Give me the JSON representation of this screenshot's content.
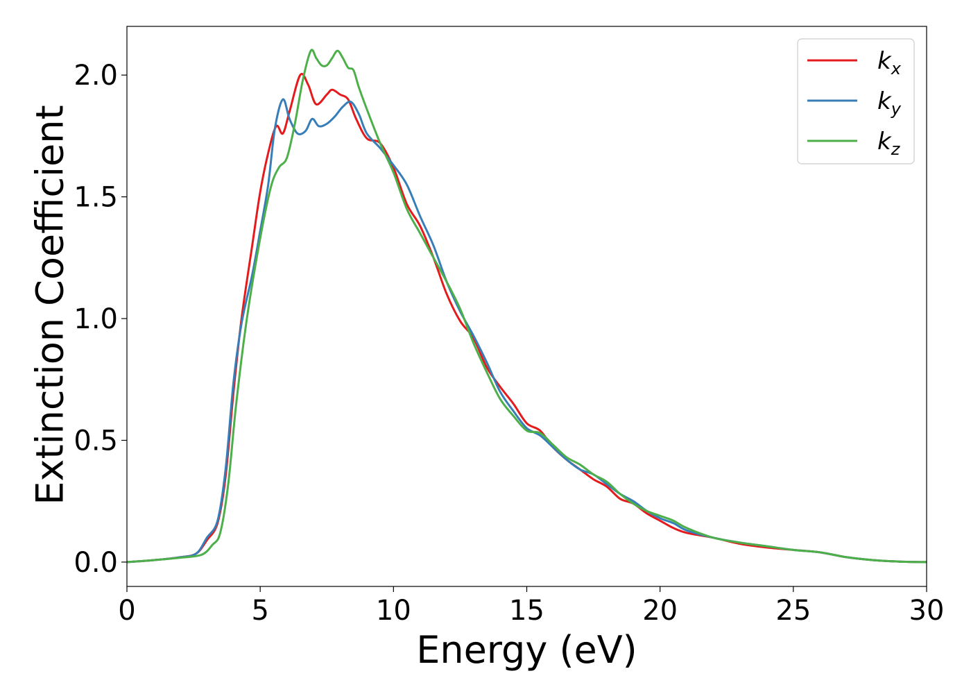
{
  "chart_data": {
    "type": "line",
    "xlabel": "Energy (eV)",
    "ylabel": "Extinction Coefficient",
    "xlim": [
      0,
      30
    ],
    "ylim": [
      -0.1,
      2.2
    ],
    "xticks": [
      0,
      5,
      10,
      15,
      20,
      25,
      30
    ],
    "xtick_labels": [
      "0",
      "5",
      "10",
      "15",
      "20",
      "25",
      "30"
    ],
    "yticks": [
      0.0,
      0.5,
      1.0,
      1.5,
      2.0
    ],
    "ytick_labels": [
      "0.0",
      "0.5",
      "1.0",
      "1.5",
      "2.0"
    ],
    "grid": false,
    "legend": {
      "position": "top-right"
    },
    "series": [
      {
        "name": "k_x",
        "legend_main": "k",
        "legend_sub": "x",
        "color": "#e41a1c",
        "x": [
          0,
          1,
          2,
          2.6,
          3.0,
          3.4,
          3.7,
          4.0,
          4.3,
          4.7,
          5.0,
          5.3,
          5.6,
          5.85,
          6.1,
          6.5,
          6.8,
          7.1,
          7.5,
          7.7,
          8.0,
          8.3,
          8.6,
          9.0,
          9.5,
          10.0,
          10.5,
          11.0,
          11.5,
          12.0,
          12.5,
          13.0,
          13.5,
          14.0,
          14.5,
          15.0,
          15.5,
          16.0,
          16.5,
          17.0,
          17.5,
          18.0,
          18.5,
          19.0,
          19.5,
          20.0,
          20.5,
          21.0,
          22.0,
          23.0,
          24.0,
          25.0,
          26.0,
          27.0,
          28.0,
          29.0,
          30.0
        ],
        "values": [
          0.0,
          0.008,
          0.02,
          0.035,
          0.09,
          0.16,
          0.35,
          0.7,
          1.0,
          1.3,
          1.52,
          1.68,
          1.79,
          1.76,
          1.85,
          2.0,
          1.96,
          1.88,
          1.92,
          1.94,
          1.92,
          1.9,
          1.82,
          1.74,
          1.72,
          1.62,
          1.47,
          1.38,
          1.25,
          1.1,
          0.99,
          0.92,
          0.8,
          0.72,
          0.65,
          0.57,
          0.54,
          0.47,
          0.42,
          0.38,
          0.34,
          0.31,
          0.26,
          0.24,
          0.2,
          0.17,
          0.14,
          0.12,
          0.1,
          0.075,
          0.06,
          0.05,
          0.04,
          0.02,
          0.008,
          0.002,
          0.0
        ]
      },
      {
        "name": "k_y",
        "legend_main": "k",
        "legend_sub": "y",
        "color": "#377eb8",
        "x": [
          0,
          1,
          2,
          2.6,
          3.0,
          3.4,
          3.7,
          4.0,
          4.3,
          4.7,
          5.0,
          5.3,
          5.55,
          5.85,
          6.1,
          6.4,
          6.7,
          6.95,
          7.2,
          7.5,
          7.8,
          8.1,
          8.4,
          8.7,
          9.0,
          9.5,
          10.0,
          10.5,
          11.0,
          11.5,
          12.0,
          12.5,
          13.0,
          13.5,
          14.0,
          14.5,
          15.0,
          15.5,
          16.0,
          16.5,
          17.0,
          17.5,
          18.0,
          18.5,
          19.0,
          19.5,
          20.0,
          20.5,
          21.0,
          22.0,
          23.0,
          24.0,
          25.0,
          26.0,
          27.0,
          28.0,
          29.0,
          30.0
        ],
        "values": [
          0.0,
          0.008,
          0.02,
          0.035,
          0.1,
          0.17,
          0.38,
          0.74,
          0.98,
          1.18,
          1.36,
          1.55,
          1.78,
          1.9,
          1.82,
          1.76,
          1.77,
          1.82,
          1.79,
          1.8,
          1.83,
          1.87,
          1.89,
          1.84,
          1.76,
          1.7,
          1.63,
          1.55,
          1.42,
          1.3,
          1.15,
          1.03,
          0.93,
          0.82,
          0.7,
          0.62,
          0.55,
          0.52,
          0.47,
          0.42,
          0.38,
          0.36,
          0.32,
          0.28,
          0.25,
          0.21,
          0.18,
          0.16,
          0.13,
          0.1,
          0.08,
          0.065,
          0.05,
          0.04,
          0.02,
          0.008,
          0.002,
          0.0
        ]
      },
      {
        "name": "k_z",
        "legend_main": "k",
        "legend_sub": "z",
        "color": "#4daf4a",
        "x": [
          0,
          1,
          2,
          2.8,
          3.2,
          3.5,
          3.8,
          4.1,
          4.5,
          5.0,
          5.4,
          5.7,
          6.0,
          6.3,
          6.6,
          6.9,
          7.1,
          7.3,
          7.5,
          7.7,
          7.9,
          8.1,
          8.3,
          8.5,
          8.7,
          9.0,
          9.5,
          10.0,
          10.5,
          11.0,
          11.5,
          12.0,
          12.5,
          13.0,
          13.5,
          14.0,
          14.5,
          15.0,
          15.5,
          16.0,
          16.5,
          17.0,
          17.5,
          18.0,
          18.5,
          19.0,
          19.5,
          20.0,
          20.5,
          21.0,
          22.0,
          23.0,
          24.0,
          25.0,
          26.0,
          27.0,
          28.0,
          29.0,
          30.0
        ],
        "values": [
          0.0,
          0.008,
          0.018,
          0.03,
          0.07,
          0.12,
          0.32,
          0.65,
          1.0,
          1.33,
          1.54,
          1.62,
          1.66,
          1.8,
          1.98,
          2.1,
          2.07,
          2.04,
          2.04,
          2.07,
          2.1,
          2.07,
          2.03,
          2.02,
          1.95,
          1.86,
          1.72,
          1.6,
          1.45,
          1.35,
          1.25,
          1.15,
          1.04,
          0.9,
          0.78,
          0.67,
          0.6,
          0.54,
          0.53,
          0.48,
          0.43,
          0.4,
          0.36,
          0.33,
          0.28,
          0.24,
          0.21,
          0.19,
          0.17,
          0.14,
          0.1,
          0.08,
          0.065,
          0.05,
          0.04,
          0.02,
          0.008,
          0.002,
          0.0
        ]
      }
    ]
  }
}
